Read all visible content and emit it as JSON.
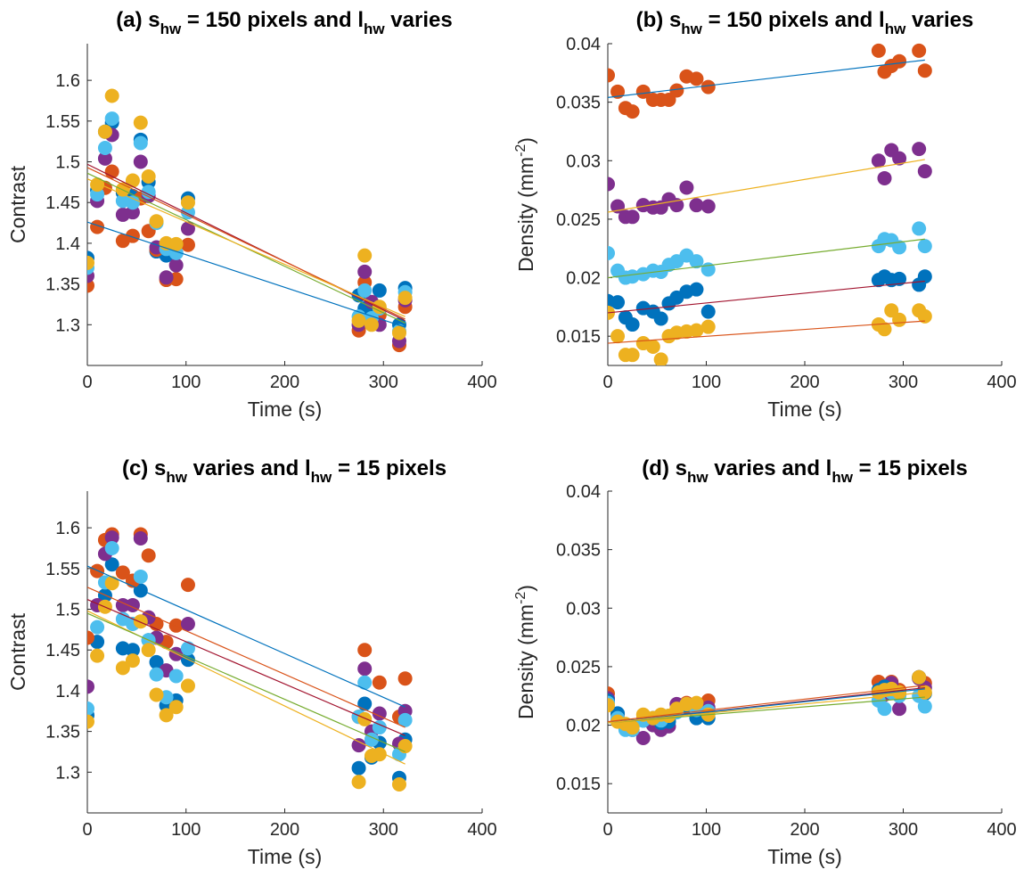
{
  "chart_data": [
    {
      "type": "scatter",
      "panel": "a",
      "title_parts": [
        "(a) s",
        "hw",
        " = 150 pixels and l",
        "hw",
        " varies"
      ],
      "xlabel": "Time (s)",
      "ylabel": "Contrast",
      "xlim": [
        0,
        400
      ],
      "ylim": [
        1.25,
        1.645
      ],
      "xticks": [
        0,
        100,
        200,
        300,
        400
      ],
      "yticks": [
        1.3,
        1.35,
        1.4,
        1.45,
        1.5,
        1.55,
        1.6
      ],
      "x": [
        0,
        10,
        18,
        25,
        36,
        46,
        54,
        62,
        70,
        80,
        90,
        102,
        275,
        281,
        288,
        296,
        316,
        322
      ],
      "series": [
        {
          "color": "#0072BD",
          "values": [
            1.382,
            1.465,
            1.537,
            1.548,
            1.462,
            1.458,
            1.527,
            1.475,
            1.39,
            1.385,
            1.388,
            1.455,
            1.336,
            1.32,
            1.312,
            1.342,
            1.3,
            1.345
          ],
          "fit": [
            1.426,
            1.297
          ]
        },
        {
          "color": "#D95319",
          "values": [
            1.348,
            1.42,
            1.468,
            1.488,
            1.403,
            1.409,
            1.455,
            1.415,
            1.392,
            1.355,
            1.356,
            1.398,
            1.293,
            1.352,
            1.305,
            1.312,
            1.275,
            1.322
          ],
          "fit": [
            1.497,
            1.305
          ]
        },
        {
          "color": "#7E2F8E",
          "values": [
            1.36,
            1.452,
            1.504,
            1.533,
            1.435,
            1.438,
            1.5,
            1.458,
            1.395,
            1.358,
            1.373,
            1.418,
            1.3,
            1.365,
            1.328,
            1.3,
            1.28,
            1.33
          ],
          "fit": [
            1.493,
            1.307
          ]
        },
        {
          "color": "#4DBEEE",
          "values": [
            1.37,
            1.46,
            1.517,
            1.553,
            1.452,
            1.45,
            1.523,
            1.463,
            1.425,
            1.393,
            1.388,
            1.438,
            1.31,
            1.342,
            1.308,
            1.32,
            1.292,
            1.34
          ],
          "fit": [
            1.486,
            1.302
          ]
        },
        {
          "color": "#EDB120",
          "values": [
            1.376,
            1.472,
            1.537,
            1.581,
            1.466,
            1.477,
            1.548,
            1.482,
            1.427,
            1.4,
            1.399,
            1.45,
            1.305,
            1.385,
            1.3,
            1.322,
            1.29,
            1.333
          ],
          "fit": [
            1.479,
            1.31
          ]
        }
      ],
      "fit_colors": [
        "#0072BD",
        "#A2142F",
        "#D95319",
        "#77AC30",
        "#EDB120"
      ]
    },
    {
      "type": "scatter",
      "panel": "b",
      "title_parts": [
        "(b) s",
        "hw",
        " = 150 pixels and l",
        "hw",
        " varies"
      ],
      "xlabel": "Time (s)",
      "ylabel": "Density (mm",
      "ylabel_sup": "-2",
      "ylabel_end": ")",
      "xlim": [
        0,
        400
      ],
      "ylim": [
        0.0125,
        0.04
      ],
      "xticks": [
        0,
        100,
        200,
        300,
        400
      ],
      "yticks": [
        0.015,
        0.02,
        0.025,
        0.03,
        0.035,
        0.04
      ],
      "x": [
        0,
        10,
        18,
        25,
        36,
        46,
        54,
        62,
        70,
        80,
        90,
        102,
        275,
        281,
        288,
        296,
        316,
        322
      ],
      "series": [
        {
          "color": "#D95319",
          "values": [
            0.0373,
            0.0359,
            0.0345,
            0.0342,
            0.0359,
            0.0352,
            0.0352,
            0.0352,
            0.036,
            0.0372,
            0.037,
            0.0363,
            0.0394,
            0.0376,
            0.0381,
            0.0385,
            0.0394,
            0.0377
          ],
          "fit": [
            0.0354,
            0.0386
          ],
          "fit_color": "#0072BD"
        },
        {
          "color": "#7E2F8E",
          "values": [
            0.028,
            0.0261,
            0.0252,
            0.0252,
            0.0262,
            0.026,
            0.026,
            0.0267,
            0.0262,
            0.0277,
            0.0262,
            0.0261,
            0.03,
            0.0285,
            0.0309,
            0.0302,
            0.031,
            0.0291
          ],
          "fit": [
            0.0256,
            0.0301
          ],
          "fit_color": "#EDB120"
        },
        {
          "color": "#4DBEEE",
          "values": [
            0.0221,
            0.0206,
            0.02,
            0.0201,
            0.0203,
            0.0206,
            0.0205,
            0.0211,
            0.0214,
            0.0219,
            0.0214,
            0.0207,
            0.0227,
            0.0233,
            0.0232,
            0.0226,
            0.0242,
            0.0227
          ],
          "fit": [
            0.02,
            0.0233
          ],
          "fit_color": "#77AC30"
        },
        {
          "color": "#0072BD",
          "values": [
            0.018,
            0.0179,
            0.0166,
            0.016,
            0.0174,
            0.0171,
            0.0165,
            0.0178,
            0.0183,
            0.0188,
            0.019,
            0.0171,
            0.0198,
            0.0201,
            0.0198,
            0.0199,
            0.0194,
            0.0201
          ],
          "fit": [
            0.017,
            0.0197
          ],
          "fit_color": "#A2142F"
        },
        {
          "color": "#EDB120",
          "values": [
            0.017,
            0.015,
            0.0134,
            0.0134,
            0.0144,
            0.0141,
            0.013,
            0.015,
            0.0153,
            0.0154,
            0.0155,
            0.0158,
            0.016,
            0.0156,
            0.0172,
            0.0164,
            0.0172,
            0.0167
          ],
          "fit": [
            0.0144,
            0.0163
          ],
          "fit_color": "#D95319"
        }
      ]
    },
    {
      "type": "scatter",
      "panel": "c",
      "title_parts": [
        "(c) s",
        "hw",
        " varies and l",
        "hw",
        " = 15 pixels"
      ],
      "xlabel": "Time (s)",
      "ylabel": "Contrast",
      "xlim": [
        0,
        400
      ],
      "ylim": [
        1.25,
        1.645
      ],
      "xticks": [
        0,
        100,
        200,
        300,
        400
      ],
      "yticks": [
        1.3,
        1.35,
        1.4,
        1.45,
        1.5,
        1.55,
        1.6
      ],
      "x": [
        0,
        10,
        18,
        25,
        36,
        46,
        54,
        62,
        70,
        80,
        90,
        102,
        275,
        281,
        288,
        296,
        316,
        322
      ],
      "series": [
        {
          "color": "#0072BD",
          "values": [
            1.37,
            1.46,
            1.517,
            1.555,
            1.452,
            1.45,
            1.523,
            1.462,
            1.435,
            1.382,
            1.388,
            1.438,
            1.305,
            1.384,
            1.318,
            1.336,
            1.293,
            1.34
          ],
          "fit": [
            1.553,
            1.38
          ]
        },
        {
          "color": "#D95319",
          "values": [
            1.465,
            1.547,
            1.585,
            1.592,
            1.545,
            1.535,
            1.592,
            1.566,
            1.482,
            1.46,
            1.48,
            1.53,
            1.368,
            1.45,
            1.34,
            1.41,
            1.368,
            1.415
          ],
          "fit": [
            1.498,
            1.31
          ]
        },
        {
          "color": "#7E2F8E",
          "values": [
            1.405,
            1.505,
            1.568,
            1.588,
            1.505,
            1.505,
            1.587,
            1.49,
            1.465,
            1.425,
            1.445,
            1.482,
            1.333,
            1.427,
            1.35,
            1.372,
            1.335,
            1.375
          ],
          "fit": [
            1.495,
            1.325
          ]
        },
        {
          "color": "#4DBEEE",
          "values": [
            1.378,
            1.478,
            1.533,
            1.575,
            1.488,
            1.482,
            1.54,
            1.462,
            1.42,
            1.392,
            1.418,
            1.452,
            1.368,
            1.41,
            1.34,
            1.355,
            1.322,
            1.364
          ],
          "fit": [
            1.512,
            1.345
          ]
        },
        {
          "color": "#EDB120",
          "values": [
            1.362,
            1.443,
            1.503,
            1.532,
            1.428,
            1.437,
            1.485,
            1.45,
            1.395,
            1.37,
            1.38,
            1.406,
            1.288,
            1.365,
            1.32,
            1.322,
            1.285,
            1.332
          ],
          "fit": [
            1.527,
            1.355
          ]
        }
      ],
      "fit_colors": [
        "#0072BD",
        "#EDB120",
        "#77AC30",
        "#A2142F",
        "#D95319"
      ]
    },
    {
      "type": "scatter",
      "panel": "d",
      "title_parts": [
        "(d) s",
        "hw",
        " varies and l",
        "hw",
        " = 15 pixels"
      ],
      "xlabel": "Time (s)",
      "ylabel": "Density (mm",
      "ylabel_sup": "-2",
      "ylabel_end": ")",
      "xlim": [
        0,
        400
      ],
      "ylim": [
        0.0125,
        0.04
      ],
      "xticks": [
        0,
        100,
        200,
        300,
        400
      ],
      "yticks": [
        0.015,
        0.02,
        0.025,
        0.03,
        0.035,
        0.04
      ],
      "x": [
        0,
        10,
        18,
        25,
        36,
        46,
        54,
        62,
        70,
        80,
        90,
        102,
        275,
        281,
        288,
        296,
        316,
        322
      ],
      "series": [
        {
          "color": "#D95319",
          "values": [
            0.0227,
            0.0209,
            0.02,
            0.0199,
            0.0205,
            0.0204,
            0.0201,
            0.0206,
            0.0214,
            0.0219,
            0.0217,
            0.0221,
            0.0237,
            0.0232,
            0.0237,
            0.023,
            0.0241,
            0.0236
          ],
          "fit": [
            0.0203,
            0.0234
          ],
          "fit_color": "#D95319"
        },
        {
          "color": "#7E2F8E",
          "values": [
            0.0223,
            0.0204,
            0.0197,
            0.0196,
            0.0189,
            0.02,
            0.0196,
            0.0199,
            0.0218,
            0.0216,
            0.0211,
            0.0215,
            0.0228,
            0.0226,
            0.0236,
            0.0214,
            0.024,
            0.0232
          ],
          "fit": [
            0.0202,
            0.0232
          ],
          "fit_color": "#A2142F"
        },
        {
          "color": "#0072BD",
          "values": [
            0.0221,
            0.021,
            0.0199,
            0.0199,
            0.0204,
            0.0206,
            0.0202,
            0.0203,
            0.0212,
            0.0215,
            0.0206,
            0.0206,
            0.023,
            0.0233,
            0.0228,
            0.0226,
            0.0241,
            0.0227
          ],
          "fit": [
            0.0202,
            0.0231
          ],
          "fit_color": "#0072BD"
        },
        {
          "color": "#4DBEEE",
          "values": [
            0.0219,
            0.0206,
            0.0196,
            0.0196,
            0.0204,
            0.0206,
            0.0204,
            0.0208,
            0.0211,
            0.0218,
            0.0213,
            0.0212,
            0.0221,
            0.0214,
            0.0228,
            0.0225,
            0.0225,
            0.0216
          ],
          "fit": [
            0.0202,
            0.0224
          ],
          "fit_color": "#77AC30"
        },
        {
          "color": "#EDB120",
          "values": [
            0.0217,
            0.0203,
            0.0201,
            0.0198,
            0.0209,
            0.0206,
            0.0209,
            0.0208,
            0.0214,
            0.0218,
            0.0219,
            0.0209,
            0.0228,
            0.023,
            0.0231,
            0.0228,
            0.0241,
            0.0228
          ],
          "fit": [
            0.0202,
            0.0228
          ],
          "fit_color": "#EDB120"
        }
      ]
    }
  ]
}
